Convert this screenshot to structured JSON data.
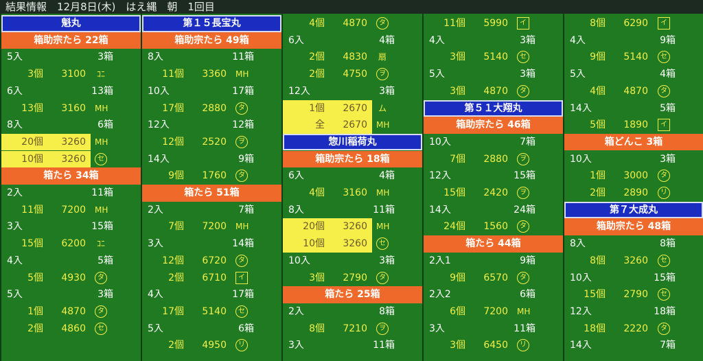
{
  "header": {
    "title": "結果情報　12月8日(木)　はえ縄　朝　1回目"
  },
  "columns": [
    {
      "rows": [
        {
          "kind": "ship",
          "text": "魁丸"
        },
        {
          "kind": "cat",
          "text": "箱助宗たら 22箱"
        },
        {
          "kind": "size",
          "left": "5入",
          "right": "3箱"
        },
        {
          "kind": "price",
          "count": "3個",
          "price": 3100,
          "mark": "ｺﾆ",
          "shape": "none"
        },
        {
          "kind": "size",
          "left": "6入",
          "right": "13箱"
        },
        {
          "kind": "price",
          "count": "13個",
          "price": 3160,
          "mark": "MH",
          "shape": "none"
        },
        {
          "kind": "size",
          "left": "8入",
          "right": "6箱"
        },
        {
          "kind": "hl",
          "count": "20個",
          "price": 3260,
          "mark": "MH",
          "shape": "none"
        },
        {
          "kind": "hl",
          "count": "10個",
          "price": 3260,
          "mark": "セ",
          "shape": "circle"
        },
        {
          "kind": "cat",
          "text": "箱たら 34箱"
        },
        {
          "kind": "size",
          "left": "2入",
          "right": "11箱"
        },
        {
          "kind": "price",
          "count": "11個",
          "price": 7200,
          "mark": "MH",
          "shape": "none"
        },
        {
          "kind": "size",
          "left": "3入",
          "right": "15箱"
        },
        {
          "kind": "price",
          "count": "15個",
          "price": 6200,
          "mark": "ｺﾆ",
          "shape": "none"
        },
        {
          "kind": "size",
          "left": "4入",
          "right": "5箱"
        },
        {
          "kind": "price",
          "count": "5個",
          "price": 4930,
          "mark": "タ",
          "shape": "circle"
        },
        {
          "kind": "size",
          "left": "5入",
          "right": "3箱"
        },
        {
          "kind": "price",
          "count": "1個",
          "price": 4870,
          "mark": "タ",
          "shape": "circle"
        },
        {
          "kind": "price",
          "count": "2個",
          "price": 4860,
          "mark": "セ",
          "shape": "circle"
        }
      ]
    },
    {
      "rows": [
        {
          "kind": "ship",
          "text": "第１５長宝丸"
        },
        {
          "kind": "cat",
          "text": "箱助宗たら 49箱"
        },
        {
          "kind": "size",
          "left": "8入",
          "right": "11箱"
        },
        {
          "kind": "price",
          "count": "11個",
          "price": 3360,
          "mark": "MH",
          "shape": "none"
        },
        {
          "kind": "size",
          "left": "10入",
          "right": "17箱"
        },
        {
          "kind": "price",
          "count": "17個",
          "price": 2880,
          "mark": "タ",
          "shape": "circle"
        },
        {
          "kind": "size",
          "left": "12入",
          "right": "12箱"
        },
        {
          "kind": "price",
          "count": "12個",
          "price": 2520,
          "mark": "ヲ",
          "shape": "circle"
        },
        {
          "kind": "size",
          "left": "14入",
          "right": "9箱"
        },
        {
          "kind": "price",
          "count": "9個",
          "price": 1760,
          "mark": "タ",
          "shape": "circle"
        },
        {
          "kind": "cat",
          "text": "箱たら 51箱"
        },
        {
          "kind": "size",
          "left": "2入",
          "right": "7箱"
        },
        {
          "kind": "price",
          "count": "7個",
          "price": 7200,
          "mark": "MH",
          "shape": "none"
        },
        {
          "kind": "size",
          "left": "3入",
          "right": "14箱"
        },
        {
          "kind": "price",
          "count": "12個",
          "price": 6720,
          "mark": "タ",
          "shape": "circle"
        },
        {
          "kind": "price",
          "count": "2個",
          "price": 6710,
          "mark": "イ",
          "shape": "box"
        },
        {
          "kind": "size",
          "left": "4入",
          "right": "17箱"
        },
        {
          "kind": "price",
          "count": "17個",
          "price": 5140,
          "mark": "セ",
          "shape": "circle"
        },
        {
          "kind": "size",
          "left": "5入",
          "right": "6箱"
        },
        {
          "kind": "price",
          "count": "2個",
          "price": 4950,
          "mark": "リ",
          "shape": "circle"
        }
      ]
    },
    {
      "rows": [
        {
          "kind": "price",
          "count": "4個",
          "price": 4870,
          "mark": "タ",
          "shape": "circle"
        },
        {
          "kind": "size",
          "left": "6入",
          "right": "4箱"
        },
        {
          "kind": "price",
          "count": "2個",
          "price": 4830,
          "mark": "扇",
          "shape": "none"
        },
        {
          "kind": "price",
          "count": "2個",
          "price": 4750,
          "mark": "ヲ",
          "shape": "circle"
        },
        {
          "kind": "size",
          "left": "12入",
          "right": "3箱"
        },
        {
          "kind": "hl",
          "count": "1個",
          "price": 2670,
          "mark": "ム",
          "shape": "none"
        },
        {
          "kind": "hl",
          "count": "全",
          "price": 2670,
          "mark": "MH",
          "shape": "none"
        },
        {
          "kind": "ship",
          "text": "惣川稲荷丸"
        },
        {
          "kind": "cat",
          "text": "箱助宗たら 18箱"
        },
        {
          "kind": "size",
          "left": "6入",
          "right": "4箱"
        },
        {
          "kind": "price",
          "count": "4個",
          "price": 3160,
          "mark": "MH",
          "shape": "none"
        },
        {
          "kind": "size",
          "left": "8入",
          "right": "11箱"
        },
        {
          "kind": "hl",
          "count": "20個",
          "price": 3260,
          "mark": "MH",
          "shape": "none"
        },
        {
          "kind": "hl",
          "count": "10個",
          "price": 3260,
          "mark": "セ",
          "shape": "circle"
        },
        {
          "kind": "size",
          "left": "10入",
          "right": "3箱"
        },
        {
          "kind": "price",
          "count": "3個",
          "price": 2790,
          "mark": "タ",
          "shape": "circle"
        },
        {
          "kind": "cat",
          "text": "箱たら 25箱"
        },
        {
          "kind": "size",
          "left": "2入",
          "right": "8箱"
        },
        {
          "kind": "price",
          "count": "8個",
          "price": 7210,
          "mark": "ヲ",
          "shape": "circle"
        },
        {
          "kind": "size",
          "left": "3入",
          "right": "11箱"
        }
      ]
    },
    {
      "rows": [
        {
          "kind": "price",
          "count": "11個",
          "price": 5990,
          "mark": "イ",
          "shape": "box"
        },
        {
          "kind": "size",
          "left": "4入",
          "right": "3箱"
        },
        {
          "kind": "price",
          "count": "3個",
          "price": 5140,
          "mark": "セ",
          "shape": "circle"
        },
        {
          "kind": "size",
          "left": "5入",
          "right": "3箱"
        },
        {
          "kind": "price",
          "count": "3個",
          "price": 4870,
          "mark": "タ",
          "shape": "circle"
        },
        {
          "kind": "ship",
          "text": "第５１大翔丸"
        },
        {
          "kind": "cat",
          "text": "箱助宗たら 46箱"
        },
        {
          "kind": "size",
          "left": "10入",
          "right": "7箱"
        },
        {
          "kind": "price",
          "count": "7個",
          "price": 2880,
          "mark": "ヲ",
          "shape": "circle"
        },
        {
          "kind": "size",
          "left": "12入",
          "right": "15箱"
        },
        {
          "kind": "price",
          "count": "15個",
          "price": 2420,
          "mark": "ヲ",
          "shape": "circle"
        },
        {
          "kind": "size",
          "left": "14入",
          "right": "24箱"
        },
        {
          "kind": "price",
          "count": "24個",
          "price": 1560,
          "mark": "タ",
          "shape": "circle"
        },
        {
          "kind": "cat",
          "text": "箱たら 44箱"
        },
        {
          "kind": "size",
          "left": "2入1",
          "right": "9箱"
        },
        {
          "kind": "price",
          "count": "9個",
          "price": 6570,
          "mark": "タ",
          "shape": "circle"
        },
        {
          "kind": "size",
          "left": "2入2",
          "right": "6箱"
        },
        {
          "kind": "price",
          "count": "6個",
          "price": 7200,
          "mark": "MH",
          "shape": "none"
        },
        {
          "kind": "size",
          "left": "3入",
          "right": "11箱"
        },
        {
          "kind": "price",
          "count": "3個",
          "price": 6450,
          "mark": "リ",
          "shape": "circle"
        }
      ]
    },
    {
      "rows": [
        {
          "kind": "price",
          "count": "8個",
          "price": 6290,
          "mark": "イ",
          "shape": "box"
        },
        {
          "kind": "size",
          "left": "4入",
          "right": "9箱"
        },
        {
          "kind": "price",
          "count": "9個",
          "price": 5140,
          "mark": "セ",
          "shape": "circle"
        },
        {
          "kind": "size",
          "left": "5入",
          "right": "4箱"
        },
        {
          "kind": "price",
          "count": "4個",
          "price": 4870,
          "mark": "タ",
          "shape": "circle"
        },
        {
          "kind": "size",
          "left": "14入",
          "right": "5箱"
        },
        {
          "kind": "price",
          "count": "5個",
          "price": 1890,
          "mark": "イ",
          "shape": "box"
        },
        {
          "kind": "cat",
          "text": "箱どんこ 3箱"
        },
        {
          "kind": "size",
          "left": "10入",
          "right": "3箱"
        },
        {
          "kind": "price",
          "count": "1個",
          "price": 3000,
          "mark": "タ",
          "shape": "circle"
        },
        {
          "kind": "price",
          "count": "2個",
          "price": 2890,
          "mark": "リ",
          "shape": "circle"
        },
        {
          "kind": "ship",
          "text": "第７大成丸"
        },
        {
          "kind": "cat",
          "text": "箱助宗たら 48箱"
        },
        {
          "kind": "size",
          "left": "8入",
          "right": "8箱"
        },
        {
          "kind": "price",
          "count": "8個",
          "price": 3260,
          "mark": "セ",
          "shape": "circle"
        },
        {
          "kind": "size",
          "left": "10入",
          "right": "15箱"
        },
        {
          "kind": "price",
          "count": "15個",
          "price": 2790,
          "mark": "セ",
          "shape": "circle"
        },
        {
          "kind": "size",
          "left": "12入",
          "right": "18箱"
        },
        {
          "kind": "price",
          "count": "18個",
          "price": 2220,
          "mark": "タ",
          "shape": "circle"
        },
        {
          "kind": "size",
          "left": "14入",
          "right": "7箱"
        }
      ]
    }
  ]
}
